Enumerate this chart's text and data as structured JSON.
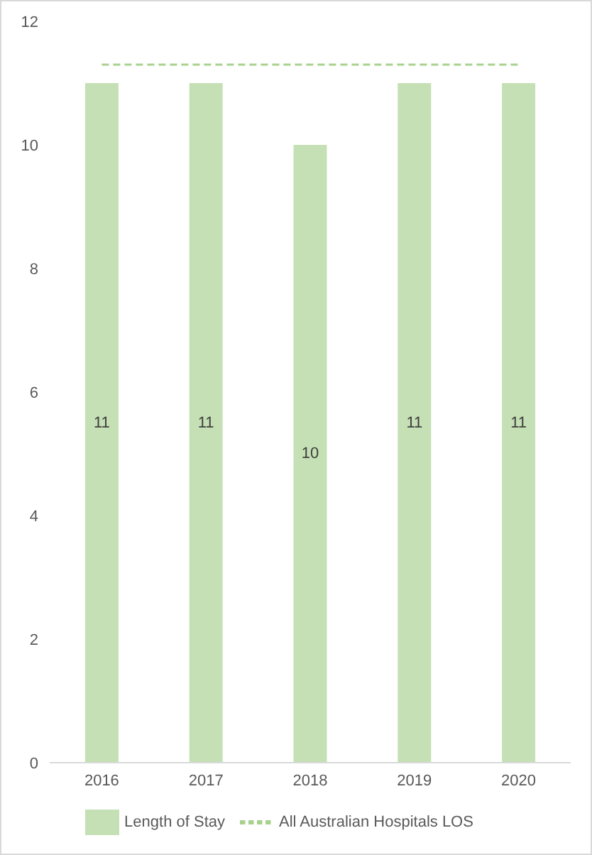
{
  "chart_data": {
    "type": "bar",
    "categories": [
      "2016",
      "2017",
      "2018",
      "2019",
      "2020"
    ],
    "series": [
      {
        "name": "Length of Stay",
        "color": "#c5e0b4",
        "values": [
          11,
          11,
          10,
          11,
          11
        ],
        "value_labels": [
          "11",
          "11",
          "10",
          "11",
          "11"
        ]
      },
      {
        "name": "All Australian Hospitals LOS",
        "type": "line",
        "color": "#a9d18e",
        "line_style": "dashed",
        "marker": "none",
        "values": [
          11.3,
          11.3,
          11.3,
          11.3,
          11.3
        ]
      }
    ],
    "ylim": [
      0,
      12
    ],
    "yticks": [
      0,
      2,
      4,
      6,
      8,
      10,
      12
    ],
    "grid": false,
    "legend": "bottom"
  }
}
